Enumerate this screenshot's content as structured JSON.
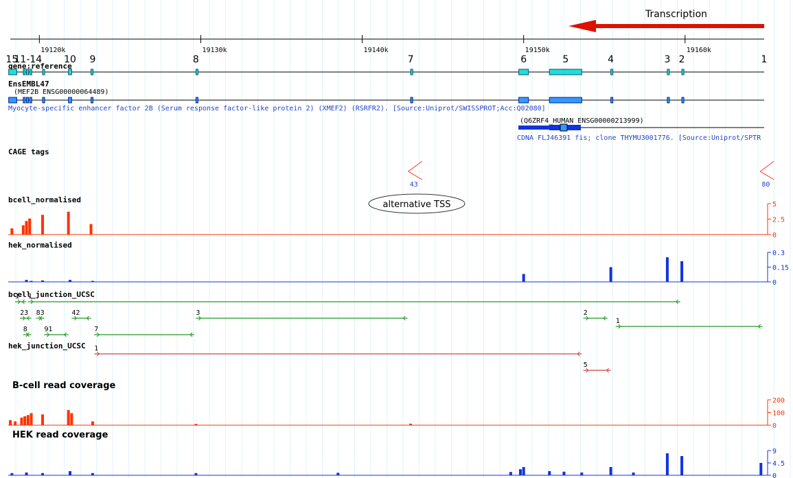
{
  "header": {
    "transcription": "Transcription"
  },
  "ruler": {
    "range": [
      19118.2,
      19164.9
    ],
    "ticks": [
      {
        "value": 19120,
        "label": "19120k"
      },
      {
        "value": 19130,
        "label": "19130k"
      },
      {
        "value": 19140,
        "label": "19140k"
      },
      {
        "value": 19150,
        "label": "19150k"
      },
      {
        "value": 19160,
        "label": "19160k"
      }
    ]
  },
  "exons": [
    {
      "label": "15",
      "pos": 19118.3
    },
    {
      "label": "11-14",
      "pos": 19119.3
    },
    {
      "label": "10",
      "pos": 19121.9
    },
    {
      "label": "9",
      "pos": 19123.3
    },
    {
      "label": "8",
      "pos": 19129.7
    },
    {
      "label": "7",
      "pos": 19143.0
    },
    {
      "label": "6",
      "pos": 19150.0
    },
    {
      "label": "5",
      "pos": 19152.6
    },
    {
      "label": "4",
      "pos": 19155.4
    },
    {
      "label": "3",
      "pos": 19158.9
    },
    {
      "label": "2",
      "pos": 19159.8
    },
    {
      "label": "1",
      "pos": 19164.9
    }
  ],
  "gene_reference": {
    "label": "gene:reference",
    "boxes": [
      [
        19118.1,
        19118.6
      ],
      [
        19119.0,
        19119.1
      ],
      [
        19119.2,
        19119.3
      ],
      [
        19119.4,
        19119.5
      ],
      [
        19120.2,
        19120.3
      ],
      [
        19121.8,
        19122.0
      ],
      [
        19123.2,
        19123.3
      ],
      [
        19129.7,
        19129.8
      ],
      [
        19143.0,
        19143.1
      ],
      [
        19149.7,
        19150.3
      ],
      [
        19151.6,
        19153.6
      ],
      [
        19155.4,
        19155.5
      ],
      [
        19158.9,
        19159.0
      ],
      [
        19159.8,
        19159.9
      ]
    ]
  },
  "ensembl": {
    "label": "EnsEMBL47",
    "gene1": "(MEF2B ENSG00000064489)",
    "desc1": "Myocyte-specific enhancer factor 2B (Serum response factor-like protein 2) (XMEF2) (RSRFR2). [Source:Uniprot/SWISSPROT;Acc:Q02080]",
    "gene2": "(Q6ZRF4_HUMAN ENSG00000213999)",
    "desc2": "CDNA FLJ46391 fis; clone THYMU3001776. [Source:Uniprot/SPTR"
  },
  "cage": {
    "label": "CAGE tags",
    "peaks": [
      {
        "pos": 19143.2,
        "value": 43
      },
      {
        "pos": 19165.0,
        "value": 80
      }
    ]
  },
  "annotation": "alternative TSS",
  "bar_tracks": [
    {
      "label": "bcell_normalised",
      "color": "#ff3300",
      "ylim": [
        0,
        5
      ],
      "yticks": [
        0,
        2.5,
        5
      ],
      "bars": [
        {
          "pos": 19118.3,
          "value": 1.0
        },
        {
          "pos": 19119.0,
          "value": 1.5
        },
        {
          "pos": 19119.2,
          "value": 2.2
        },
        {
          "pos": 19119.4,
          "value": 2.6
        },
        {
          "pos": 19120.2,
          "value": 3.2
        },
        {
          "pos": 19121.8,
          "value": 3.7
        },
        {
          "pos": 19123.2,
          "value": 1.7
        }
      ]
    },
    {
      "label": "hek_normalised",
      "color": "#1133dd",
      "ylim": [
        0,
        0.3
      ],
      "yticks": [
        0,
        0.15,
        0.3
      ],
      "bars": [
        {
          "pos": 19119.2,
          "value": 0.02
        },
        {
          "pos": 19119.5,
          "value": 0.01
        },
        {
          "pos": 19120.2,
          "value": 0.015
        },
        {
          "pos": 19121.9,
          "value": 0.02
        },
        {
          "pos": 19123.3,
          "value": 0.01
        },
        {
          "pos": 19150.0,
          "value": 0.08
        },
        {
          "pos": 19155.4,
          "value": 0.15
        },
        {
          "pos": 19158.9,
          "value": 0.25
        },
        {
          "pos": 19159.8,
          "value": 0.21
        }
      ]
    },
    {
      "label": "B-cell read coverage",
      "color": "#ff3300",
      "ylim": [
        0,
        200
      ],
      "yticks": [
        0,
        100,
        200
      ],
      "bars": [
        {
          "pos": 19118.2,
          "value": 40
        },
        {
          "pos": 19118.5,
          "value": 30
        },
        {
          "pos": 19118.9,
          "value": 60
        },
        {
          "pos": 19119.1,
          "value": 70
        },
        {
          "pos": 19119.3,
          "value": 80
        },
        {
          "pos": 19119.5,
          "value": 95
        },
        {
          "pos": 19120.2,
          "value": 85
        },
        {
          "pos": 19121.8,
          "value": 120
        },
        {
          "pos": 19122.0,
          "value": 95
        },
        {
          "pos": 19123.3,
          "value": 30
        },
        {
          "pos": 19129.7,
          "value": 10
        },
        {
          "pos": 19143.0,
          "value": 12
        }
      ]
    },
    {
      "label": "HEK read coverage",
      "color": "#1133dd",
      "ylim": [
        0,
        9
      ],
      "yticks": [
        0,
        4.5,
        9
      ],
      "bars": [
        {
          "pos": 19118.3,
          "value": 0.8
        },
        {
          "pos": 19119.2,
          "value": 1.0
        },
        {
          "pos": 19120.2,
          "value": 0.8
        },
        {
          "pos": 19121.9,
          "value": 1.5
        },
        {
          "pos": 19123.3,
          "value": 0.8
        },
        {
          "pos": 19129.7,
          "value": 0.8
        },
        {
          "pos": 19138.5,
          "value": 0.9
        },
        {
          "pos": 19149.2,
          "value": 1.2
        },
        {
          "pos": 19149.8,
          "value": 2.2
        },
        {
          "pos": 19150.0,
          "value": 3.0
        },
        {
          "pos": 19151.6,
          "value": 1.5
        },
        {
          "pos": 19152.5,
          "value": 1.3
        },
        {
          "pos": 19153.6,
          "value": 1.0
        },
        {
          "pos": 19155.4,
          "value": 3.0
        },
        {
          "pos": 19156.8,
          "value": 1.0
        },
        {
          "pos": 19158.9,
          "value": 8.0
        },
        {
          "pos": 19159.8,
          "value": 7.0
        },
        {
          "pos": 19164.7,
          "value": 4.5
        }
      ]
    }
  ],
  "junction_tracks": [
    {
      "label": "bcell_junction_UCSC",
      "color": "#229922",
      "junctions": [
        {
          "from": 19118.5,
          "to": 19119.2,
          "label": "1",
          "row": 0
        },
        {
          "from": 19119.3,
          "to": 19159.7,
          "label": "1",
          "row": 0
        },
        {
          "from": 19118.8,
          "to": 19119.5,
          "label": "23",
          "row": 1
        },
        {
          "from": 19119.8,
          "to": 19120.3,
          "label": "83",
          "row": 1
        },
        {
          "from": 19122.0,
          "to": 19123.2,
          "label": "42",
          "row": 1
        },
        {
          "from": 19129.7,
          "to": 19142.8,
          "label": "3",
          "row": 1
        },
        {
          "from": 19153.7,
          "to": 19155.2,
          "label": "2",
          "row": 1
        },
        {
          "from": 19155.7,
          "to": 19164.8,
          "label": "1",
          "row": 2
        },
        {
          "from": 19119.0,
          "to": 19119.5,
          "label": "8",
          "row": 3
        },
        {
          "from": 19120.3,
          "to": 19121.8,
          "label": "91",
          "row": 3
        },
        {
          "from": 19123.4,
          "to": 19129.6,
          "label": "7",
          "row": 3
        }
      ]
    },
    {
      "label": "hek_junction_UCSC",
      "color": "#cc4444",
      "junctions": [
        {
          "from": 19123.4,
          "to": 19153.6,
          "label": "1",
          "row": 0
        },
        {
          "from": 19153.7,
          "to": 19155.4,
          "label": "5",
          "row": 1
        }
      ]
    }
  ]
}
